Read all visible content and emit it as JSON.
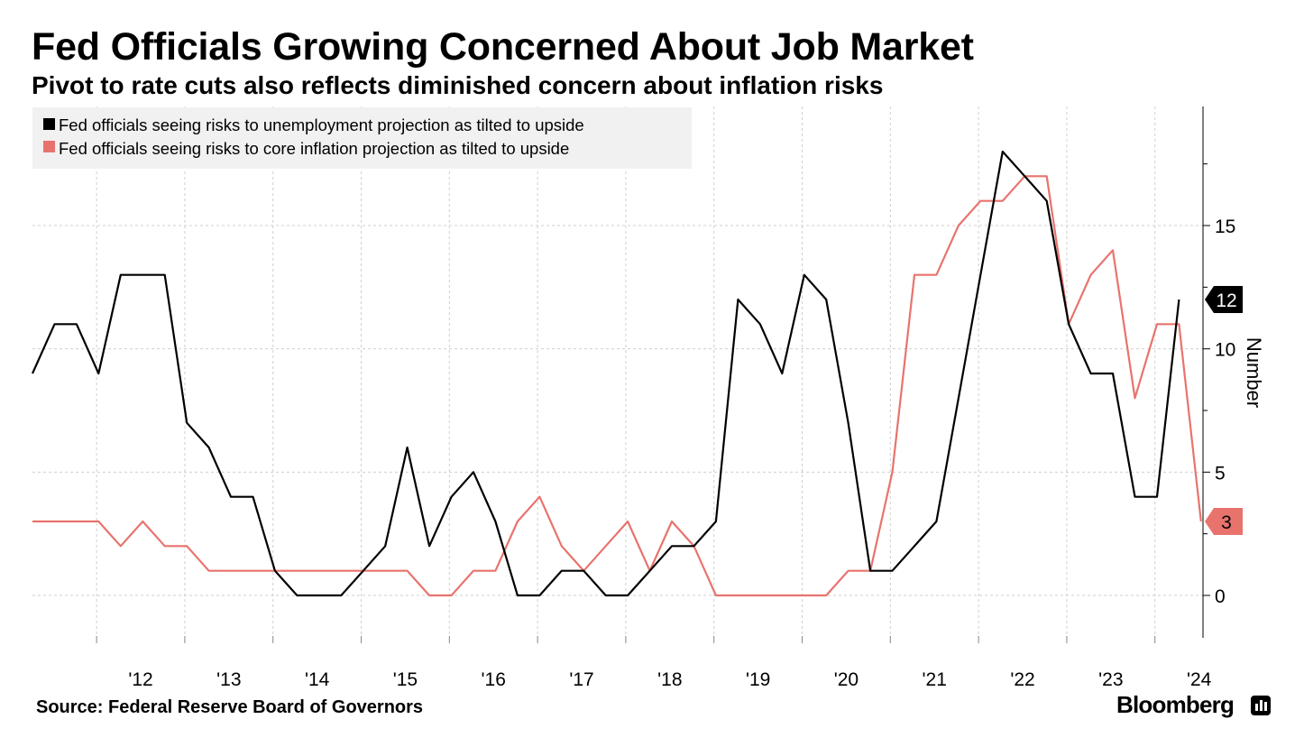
{
  "header": {
    "title": "Fed Officials Growing Concerned About Job Market",
    "subtitle": "Pivot to rate cuts also reflects diminished concern about inflation risks"
  },
  "footer": {
    "source": "Source: Federal Reserve Board of Governors",
    "brand": "Bloomberg"
  },
  "colors": {
    "black_series": "#000000",
    "red_series": "#e8736d",
    "badge_red": "#e8736d",
    "grid": "#cfcfcf",
    "legend_bg": "#f1f1f1"
  },
  "chart_data": {
    "type": "line",
    "title": "Fed Officials Growing Concerned About Job Market",
    "subtitle": "Pivot to rate cuts also reflects diminished concern about inflation risks",
    "ylabel": "Number",
    "ylim": [
      -1.7,
      19.8
    ],
    "yticks": [
      0,
      5,
      10,
      15
    ],
    "x_tick_labels": [
      "'12",
      "'13",
      "'14",
      "'15",
      "'16",
      "'17",
      "'18",
      "'19",
      "'20",
      "'21",
      "'22",
      "'23",
      "'24"
    ],
    "x_period": "quarterly, 2011 Q2 – 2024 Q3",
    "grid": true,
    "legend_position": "top-left",
    "x": [
      "2011-Q2",
      "2011-Q3",
      "2011-Q4",
      "2012-Q1",
      "2012-Q2",
      "2012-Q3",
      "2012-Q4",
      "2013-Q1",
      "2013-Q2",
      "2013-Q3",
      "2013-Q4",
      "2014-Q1",
      "2014-Q2",
      "2014-Q3",
      "2014-Q4",
      "2015-Q1",
      "2015-Q2",
      "2015-Q3",
      "2015-Q4",
      "2016-Q1",
      "2016-Q2",
      "2016-Q3",
      "2016-Q4",
      "2017-Q1",
      "2017-Q2",
      "2017-Q3",
      "2017-Q4",
      "2018-Q1",
      "2018-Q2",
      "2018-Q3",
      "2018-Q4",
      "2019-Q1",
      "2019-Q2",
      "2019-Q3",
      "2019-Q4",
      "2020-Q1",
      "2020-Q2",
      "2020-Q3",
      "2020-Q4",
      "2021-Q1",
      "2021-Q2",
      "2021-Q3",
      "2021-Q4",
      "2022-Q1",
      "2022-Q2",
      "2022-Q3",
      "2022-Q4",
      "2023-Q1",
      "2023-Q2",
      "2023-Q3",
      "2023-Q4",
      "2024-Q1",
      "2024-Q2",
      "2024-Q3"
    ],
    "series": [
      {
        "name": "Fed officials seeing risks to unemployment projection as tilted to upside",
        "color": "#000000",
        "values": [
          9,
          11,
          11,
          9,
          13,
          13,
          13,
          7,
          6,
          4,
          4,
          1,
          0,
          0,
          0,
          1,
          2,
          6,
          2,
          4,
          5,
          3,
          0,
          0,
          1,
          1,
          0,
          0,
          1,
          2,
          2,
          3,
          12,
          11,
          9,
          13,
          12,
          7,
          1,
          1,
          2,
          3,
          8,
          13,
          18,
          17,
          16,
          11,
          9,
          9,
          4,
          4,
          12,
          null
        ]
      },
      {
        "name": "Fed officials seeing risks to core inflation projection as tilted to upside",
        "color": "#e8736d",
        "values": [
          3,
          3,
          3,
          3,
          2,
          3,
          2,
          2,
          1,
          1,
          1,
          1,
          1,
          1,
          1,
          1,
          1,
          1,
          0,
          0,
          1,
          1,
          3,
          4,
          2,
          1,
          2,
          3,
          1,
          3,
          2,
          0,
          0,
          0,
          0,
          0,
          0,
          1,
          1,
          5,
          13,
          13,
          15,
          16,
          16,
          17,
          17,
          11,
          13,
          14,
          8,
          11,
          11,
          3
        ]
      }
    ],
    "end_labels": [
      "12",
      "3"
    ]
  }
}
